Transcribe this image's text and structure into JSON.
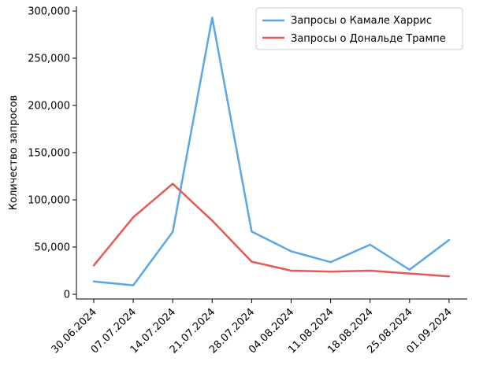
{
  "chart_data": {
    "type": "line",
    "title": "",
    "xlabel": "",
    "ylabel": "Количество запросов",
    "x": [
      "30.06.2024",
      "07.07.2024",
      "14.07.2024",
      "21.07.2024",
      "28.07.2024",
      "04.08.2024",
      "11.08.2024",
      "18.08.2024",
      "25.08.2024",
      "01.09.2024"
    ],
    "yticks": [
      "0",
      "50,000",
      "100,000",
      "150,000",
      "200,000",
      "250,000",
      "300,000"
    ],
    "ylim": [
      -5000,
      305000
    ],
    "grid": false,
    "legend_position": "top-right",
    "series": [
      {
        "name": "Запросы о Камале Харрис",
        "color": "#5aa6e6",
        "values": [
          13500,
          9500,
          66000,
          293000,
          66500,
          45500,
          34000,
          52500,
          26000,
          57500
        ]
      },
      {
        "name": "Запросы о Дональде Трампе",
        "color": "#e45b56",
        "values": [
          30500,
          81500,
          117000,
          78000,
          34500,
          25000,
          24000,
          25000,
          22000,
          19000
        ]
      }
    ]
  }
}
